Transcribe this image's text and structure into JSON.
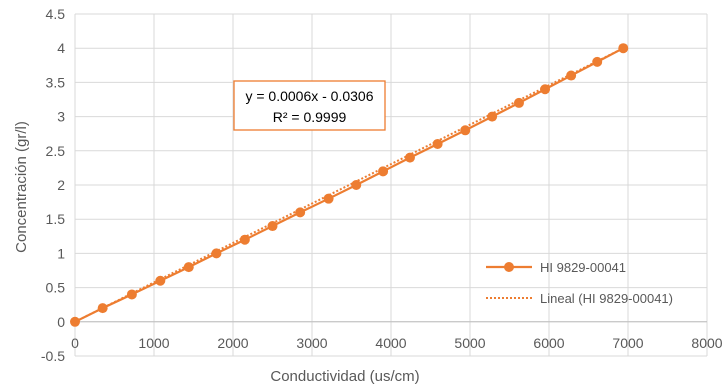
{
  "chart_data": {
    "type": "scatter",
    "title": "",
    "xlabel": "Conductividad (us/cm)",
    "ylabel": "Concentración (gr/l)",
    "xlim": [
      0,
      8000
    ],
    "ylim": [
      -0.5,
      4.5
    ],
    "x_ticks": [
      "0",
      "1000",
      "2000",
      "3000",
      "4000",
      "5000",
      "6000",
      "7000",
      "8000"
    ],
    "y_ticks": [
      "-0.5",
      "0",
      "0.5",
      "1",
      "1.5",
      "2",
      "2.5",
      "3",
      "3.5",
      "4",
      "4.5"
    ],
    "grid": true,
    "legend_position": "bottom-right",
    "series": [
      {
        "name": "HI 9829-00041",
        "color": "#ED7D31",
        "marker": "circle",
        "x": [
          0,
          350,
          720,
          1080,
          1440,
          1790,
          2150,
          2500,
          2850,
          3210,
          3560,
          3900,
          4240,
          4590,
          4940,
          5280,
          5620,
          5950,
          6280,
          6610,
          6940
        ],
        "y": [
          0,
          0.2,
          0.4,
          0.6,
          0.8,
          1.0,
          1.2,
          1.4,
          1.6,
          1.8,
          2.0,
          2.2,
          2.4,
          2.6,
          2.8,
          3.0,
          3.2,
          3.4,
          3.6,
          3.8,
          4.0
        ]
      }
    ],
    "trendline": {
      "name": "Lineal (HI 9829-00041)",
      "color": "#ED7D31",
      "style": "dotted",
      "x": [
        0,
        6940
      ]
    },
    "equation": {
      "line1": "y = 0.0006x - 0.0306",
      "line2": "R² = 0.9999",
      "border_color": "#ED7D31"
    }
  }
}
